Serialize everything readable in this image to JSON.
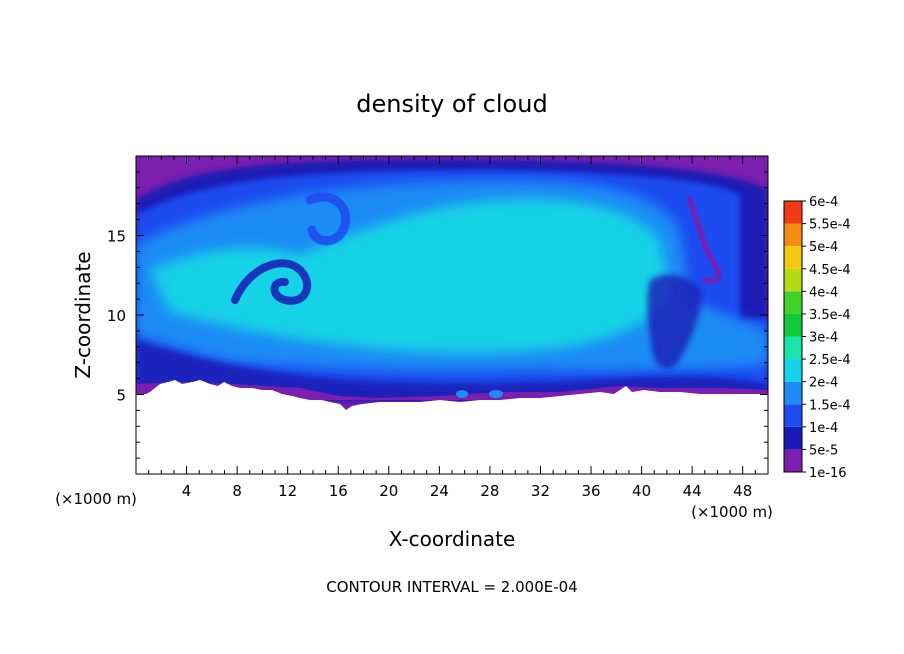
{
  "chart_data": {
    "type": "heatmap",
    "title": "density of cloud",
    "xlabel": "X-coordinate",
    "ylabel": "Z-coordinate",
    "x_unit": "(×1000 m)",
    "z_unit": "(×1000 m)",
    "xlim": [
      0,
      50
    ],
    "ylim": [
      0,
      20
    ],
    "x_ticks": [
      4,
      8,
      12,
      16,
      20,
      24,
      28,
      32,
      36,
      40,
      44,
      48
    ],
    "y_ticks": [
      5,
      10,
      15
    ],
    "footnote": "CONTOUR INTERVAL = 2.000E-04",
    "colorbar": {
      "levels": [
        "1e-16",
        "5e-5",
        "1e-4",
        "1.5e-4",
        "2e-4",
        "2.5e-4",
        "3e-4",
        "3.5e-4",
        "4e-4",
        "4.5e-4",
        "5e-4",
        "5.5e-4",
        "6e-4"
      ],
      "colors": [
        "#7a1fb0",
        "#1a1ab4",
        "#1f4cf0",
        "#1e8cf5",
        "#17d2e6",
        "#19e6a6",
        "#14c83c",
        "#40d225",
        "#b4dc14",
        "#f5c814",
        "#f58c14",
        "#f03c14",
        "#f5648c"
      ]
    },
    "field_description_colors": {
      "background_low": "#7a1fb0",
      "dark_blue": "#1a1ab4",
      "blue": "#1f4cf0",
      "mid_blue": "#1e8cf5",
      "cyan": "#17d2e6"
    }
  }
}
